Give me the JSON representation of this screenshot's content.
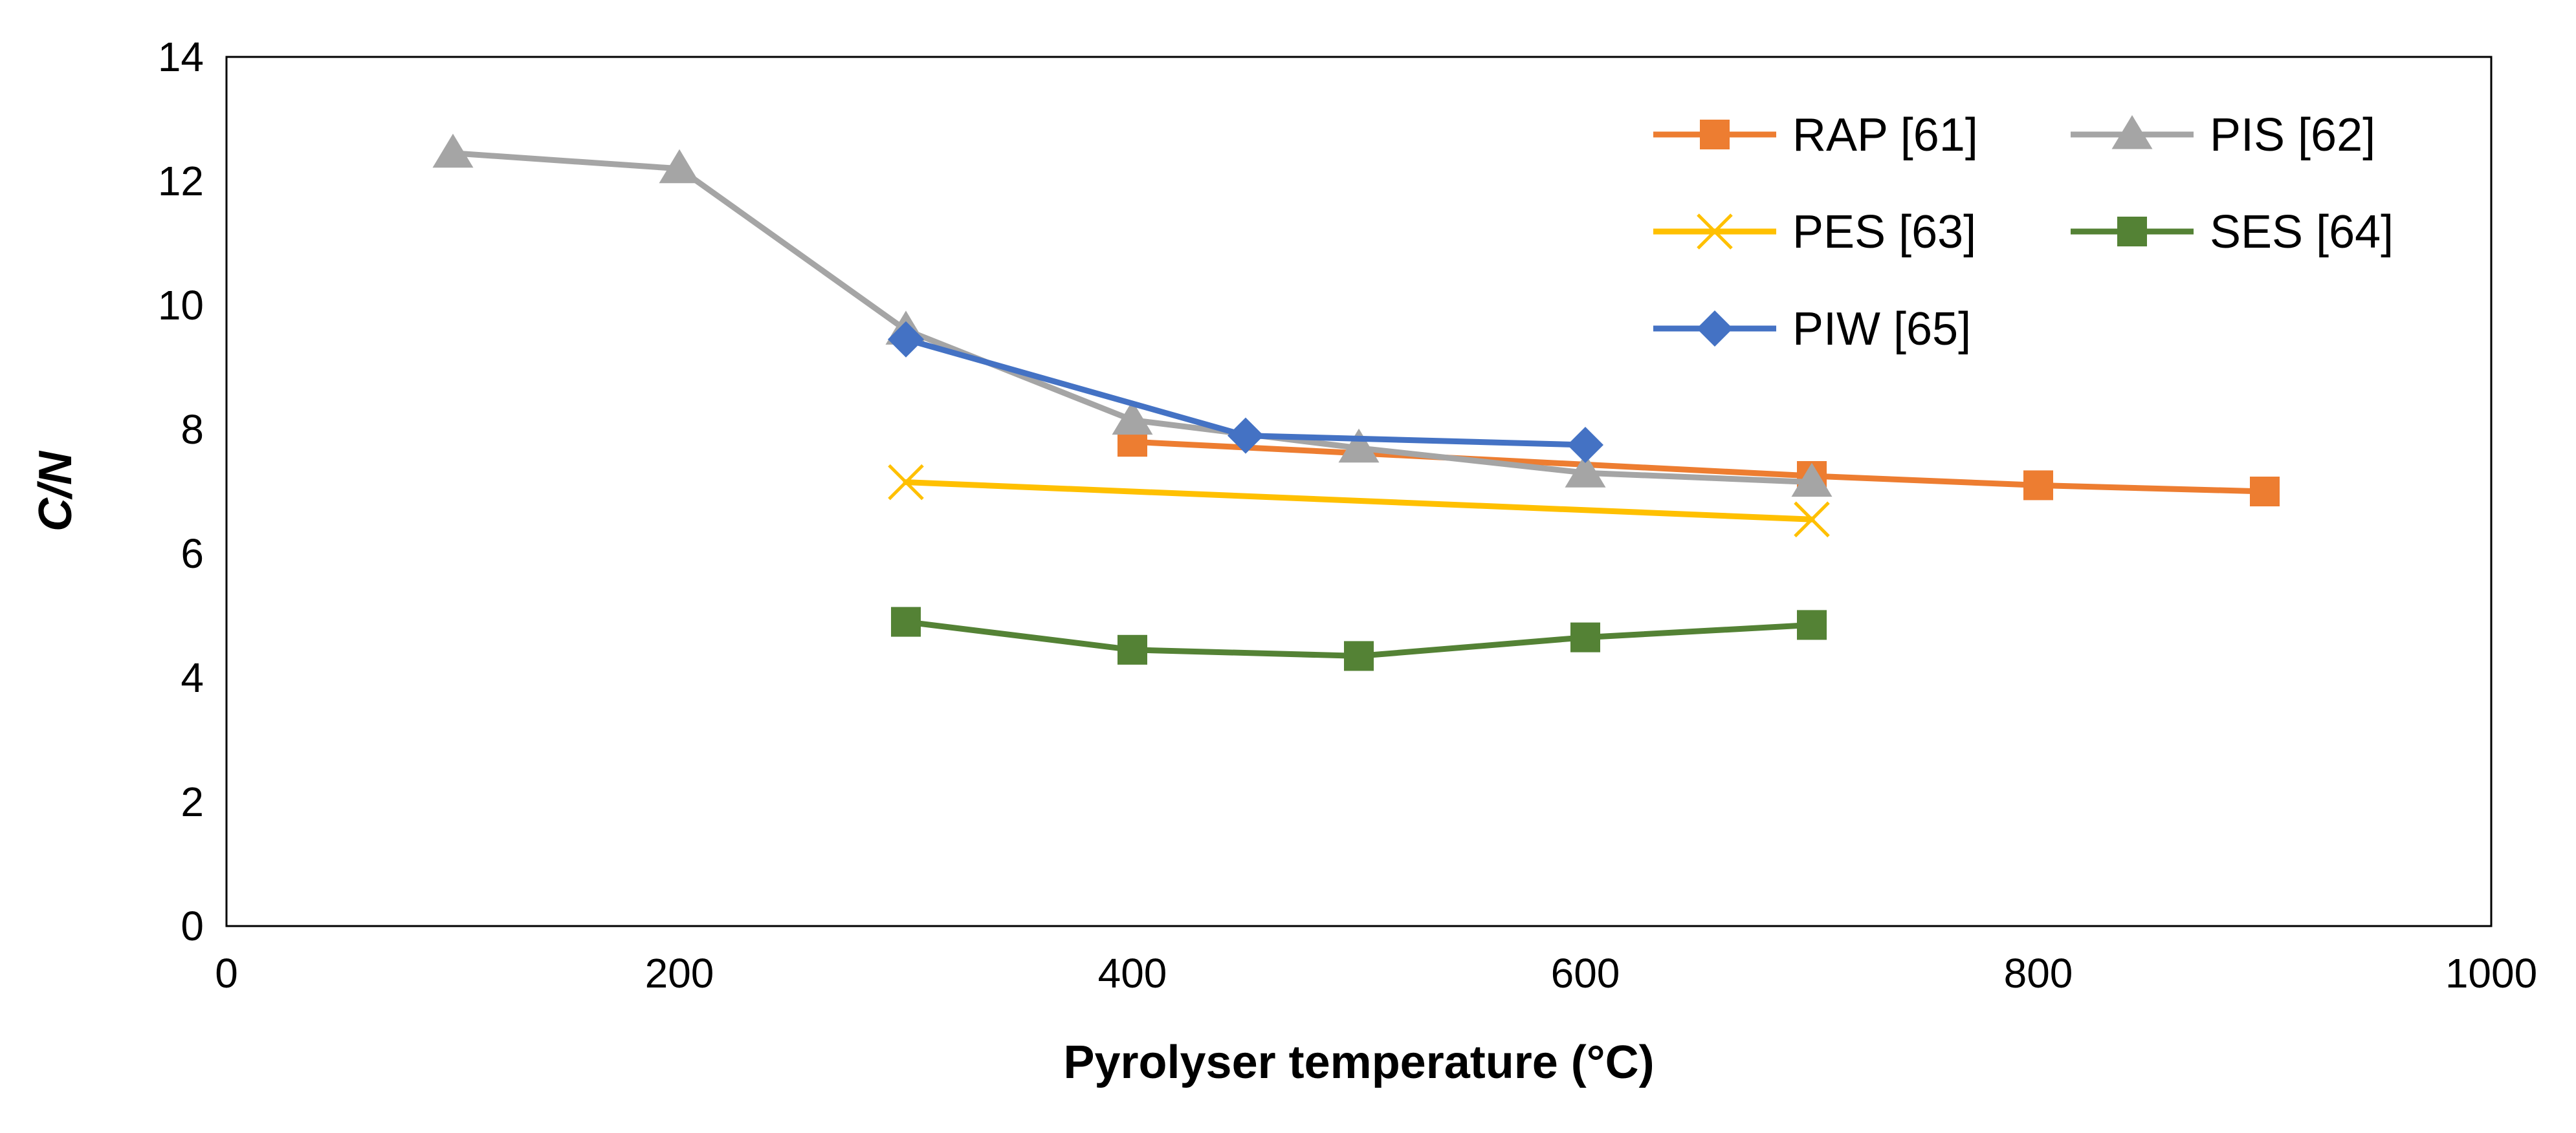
{
  "chart_data": {
    "type": "line",
    "title": "",
    "xlabel": "Pyrolyser temperature (°C)",
    "ylabel": "C/N",
    "xlim": [
      0,
      1000
    ],
    "ylim": [
      0,
      14
    ],
    "xticks": [
      0,
      200,
      400,
      600,
      800,
      1000
    ],
    "yticks": [
      0,
      2,
      4,
      6,
      8,
      10,
      12,
      14
    ],
    "grid": false,
    "legend_position": "top-right",
    "series": [
      {
        "name": "RAP [61]",
        "color": "#ED7D31",
        "marker": "square",
        "x": [
          400,
          700,
          800,
          900
        ],
        "y": [
          7.8,
          7.25,
          7.1,
          7.0
        ]
      },
      {
        "name": "PIS [62]",
        "color": "#A5A5A5",
        "marker": "triangle",
        "x": [
          100,
          200,
          300,
          400,
          500,
          600,
          700
        ],
        "y": [
          12.45,
          12.2,
          9.6,
          8.15,
          7.7,
          7.3,
          7.15
        ]
      },
      {
        "name": "PES [63]",
        "color": "#FFC000",
        "marker": "x",
        "x": [
          300,
          700
        ],
        "y": [
          7.15,
          6.55
        ]
      },
      {
        "name": "SES [64]",
        "color": "#548235",
        "marker": "square",
        "x": [
          300,
          400,
          500,
          600,
          700
        ],
        "y": [
          4.9,
          4.45,
          4.35,
          4.65,
          4.85
        ]
      },
      {
        "name": "PIW [65]",
        "color": "#4472C4",
        "marker": "diamond",
        "x": [
          300,
          450,
          600
        ],
        "y": [
          9.45,
          7.9,
          7.75
        ]
      }
    ]
  }
}
